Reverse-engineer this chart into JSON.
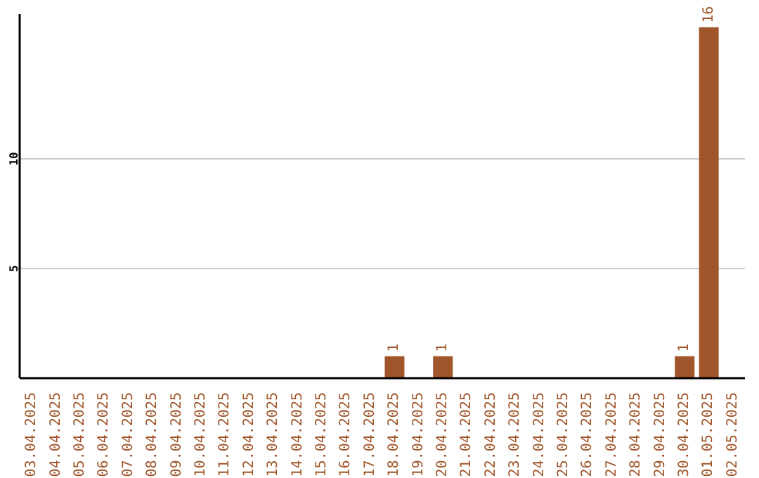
{
  "chart_data": {
    "type": "bar",
    "categories": [
      "03.04.2025",
      "04.04.2025",
      "05.04.2025",
      "06.04.2025",
      "07.04.2025",
      "08.04.2025",
      "09.04.2025",
      "10.04.2025",
      "11.04.2025",
      "12.04.2025",
      "13.04.2025",
      "14.04.2025",
      "15.04.2025",
      "16.04.2025",
      "17.04.2025",
      "18.04.2025",
      "19.04.2025",
      "20.04.2025",
      "21.04.2025",
      "22.04.2025",
      "23.04.2025",
      "24.04.2025",
      "25.04.2025",
      "26.04.2025",
      "27.04.2025",
      "28.04.2025",
      "29.04.2025",
      "30.04.2025",
      "01.05.2025",
      "02.05.2025"
    ],
    "values": [
      0,
      0,
      0,
      0,
      0,
      0,
      0,
      0,
      0,
      0,
      0,
      0,
      0,
      0,
      0,
      1,
      0,
      1,
      0,
      0,
      0,
      0,
      0,
      0,
      0,
      0,
      0,
      1,
      16,
      0
    ],
    "value_labels": [
      null,
      null,
      null,
      null,
      null,
      null,
      null,
      null,
      null,
      null,
      null,
      null,
      null,
      null,
      null,
      "1",
      null,
      "1",
      null,
      null,
      null,
      null,
      null,
      null,
      null,
      null,
      null,
      "1",
      "16",
      null
    ],
    "color": "#a0562a",
    "ylim": [
      0,
      16.6
    ],
    "yticks": [
      5,
      10
    ],
    "grid": "y"
  }
}
